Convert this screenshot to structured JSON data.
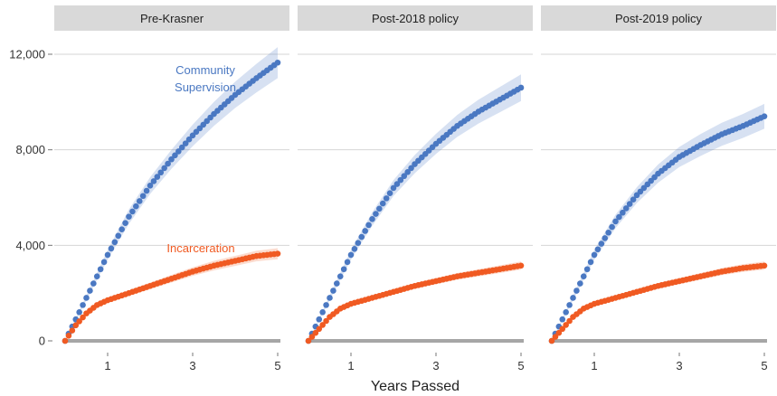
{
  "chart_data": {
    "type": "scatter",
    "xlabel": "Years Passed",
    "ylabel": "",
    "xlim": [
      0,
      5
    ],
    "ylim": [
      0,
      12000
    ],
    "x_ticks": [
      1,
      3,
      5
    ],
    "y_ticks": [
      0,
      4000,
      8000,
      12000
    ],
    "y_tick_labels": [
      "0",
      "4,000",
      "8,000",
      "12,000"
    ],
    "grid": true,
    "colors": {
      "community": "#4a78c2",
      "incarceration": "#f05a22",
      "baseline": "#a6a6a6",
      "strip": "#d9d9d9",
      "grid": "#d6d6d6"
    },
    "annotations": [
      {
        "panel": 0,
        "series": "community",
        "lines": [
          "Community",
          "Supervision"
        ]
      },
      {
        "panel": 0,
        "series": "incarceration",
        "lines": [
          "Incarceration"
        ]
      }
    ],
    "panels": [
      {
        "title": "Pre-Krasner",
        "series": [
          {
            "key": "community",
            "x": [
              0,
              0.5,
              1,
              1.5,
              2,
              2.5,
              3,
              3.5,
              4,
              4.5,
              5
            ],
            "y": [
              0,
              1800,
              3600,
              5200,
              6500,
              7600,
              8600,
              9500,
              10300,
              11000,
              11650
            ],
            "band": [
              0,
              100,
              200,
              300,
              350,
              400,
              450,
              500,
              550,
              600,
              650
            ]
          },
          {
            "key": "incarceration",
            "x": [
              0,
              0.25,
              0.5,
              0.75,
              1,
              1.5,
              2,
              2.5,
              3,
              3.5,
              4,
              4.5,
              5
            ],
            "y": [
              0,
              650,
              1150,
              1500,
              1700,
              2000,
              2300,
              2600,
              2900,
              3150,
              3350,
              3550,
              3650
            ],
            "band": [
              0,
              40,
              60,
              80,
              100,
              120,
              140,
              160,
              180,
              200,
              210,
              220,
              230
            ]
          }
        ]
      },
      {
        "title": "Post-2018 policy",
        "series": [
          {
            "key": "community",
            "x": [
              0,
              0.5,
              1,
              1.5,
              2,
              2.5,
              3,
              3.5,
              4,
              4.5,
              5
            ],
            "y": [
              0,
              1800,
              3600,
              5100,
              6400,
              7400,
              8250,
              9000,
              9600,
              10100,
              10600
            ],
            "band": [
              0,
              100,
              200,
              280,
              330,
              380,
              420,
              460,
              500,
              530,
              560
            ]
          },
          {
            "key": "incarceration",
            "x": [
              0,
              0.25,
              0.5,
              0.75,
              1,
              1.5,
              2,
              2.5,
              3,
              3.5,
              4,
              4.5,
              5
            ],
            "y": [
              0,
              500,
              1000,
              1350,
              1550,
              1800,
              2050,
              2300,
              2500,
              2700,
              2850,
              3000,
              3150
            ],
            "band": [
              0,
              40,
              60,
              80,
              90,
              100,
              110,
              120,
              130,
              140,
              150,
              160,
              170
            ]
          }
        ]
      },
      {
        "title": "Post-2019 policy",
        "series": [
          {
            "key": "community",
            "x": [
              0,
              0.5,
              1,
              1.5,
              2,
              2.5,
              3,
              3.5,
              4,
              4.5,
              5
            ],
            "y": [
              0,
              1800,
              3600,
              5000,
              6100,
              7000,
              7700,
              8200,
              8650,
              9000,
              9400
            ],
            "band": [
              0,
              100,
              200,
              280,
              330,
              380,
              420,
              460,
              480,
              500,
              520
            ]
          },
          {
            "key": "incarceration",
            "x": [
              0,
              0.25,
              0.5,
              0.75,
              1,
              1.5,
              2,
              2.5,
              3,
              3.5,
              4,
              4.5,
              5
            ],
            "y": [
              0,
              500,
              1000,
              1350,
              1550,
              1800,
              2050,
              2300,
              2500,
              2700,
              2900,
              3050,
              3150
            ],
            "band": [
              0,
              40,
              60,
              80,
              90,
              100,
              110,
              120,
              130,
              140,
              150,
              160,
              170
            ]
          }
        ]
      }
    ]
  }
}
